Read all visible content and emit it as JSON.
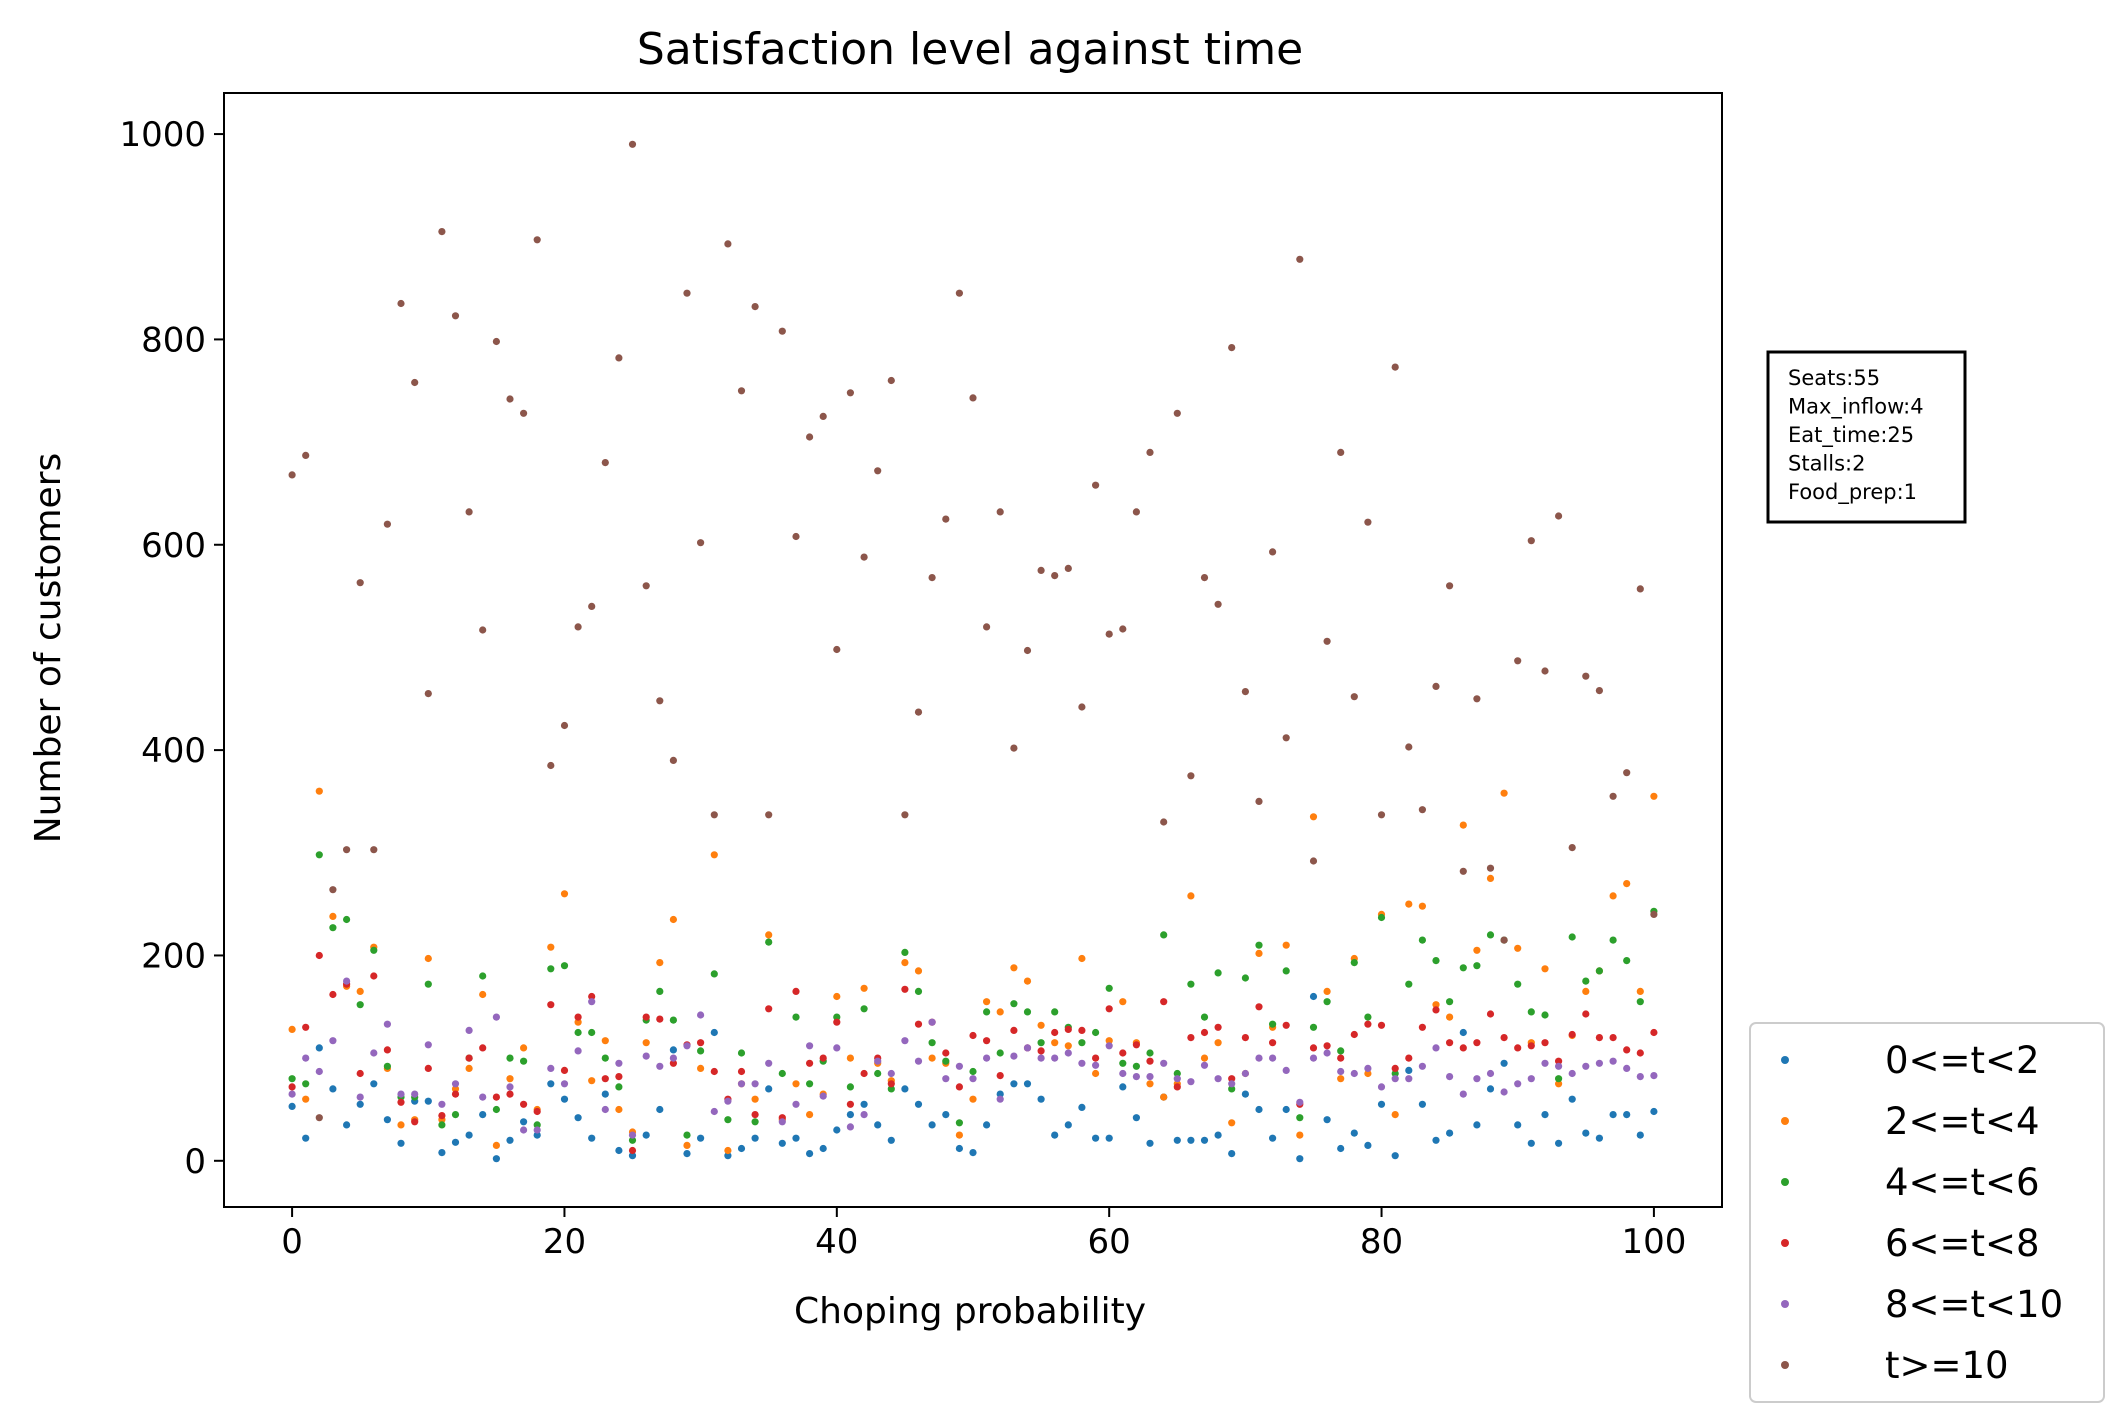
{
  "chart_data": {
    "type": "scatter",
    "title": "Satisfaction level against time",
    "xlabel": "Choping probability",
    "ylabel": "Number of customers",
    "xlim": [
      -5,
      105
    ],
    "ylim": [
      -45,
      1040
    ],
    "xticks": [
      0,
      20,
      40,
      60,
      80,
      100
    ],
    "yticks": [
      0,
      200,
      400,
      600,
      800,
      1000
    ],
    "grid": false,
    "legend_position": "outside lower right",
    "x": [
      0,
      1,
      2,
      3,
      4,
      5,
      6,
      7,
      8,
      9,
      10,
      11,
      12,
      13,
      14,
      15,
      16,
      17,
      18,
      19,
      20,
      21,
      22,
      23,
      24,
      25,
      26,
      27,
      28,
      29,
      30,
      31,
      32,
      33,
      34,
      35,
      36,
      37,
      38,
      39,
      40,
      41,
      42,
      43,
      44,
      45,
      46,
      47,
      48,
      49,
      50,
      51,
      52,
      53,
      54,
      55,
      56,
      57,
      58,
      59,
      60,
      61,
      62,
      63,
      64,
      65,
      66,
      67,
      68,
      69,
      70,
      71,
      72,
      73,
      74,
      75,
      76,
      77,
      78,
      79,
      80,
      81,
      82,
      83,
      84,
      85,
      86,
      87,
      88,
      89,
      90,
      91,
      92,
      93,
      94,
      95,
      96,
      97,
      98,
      99,
      100
    ],
    "series": [
      {
        "name": "0<=t<2",
        "color": "#1f77b4",
        "values": [
          53,
          22,
          110,
          70,
          35,
          55,
          75,
          40,
          17,
          58,
          58,
          8,
          18,
          25,
          45,
          2,
          20,
          38,
          25,
          75,
          60,
          42,
          22,
          65,
          10,
          5,
          25,
          50,
          108,
          7,
          22,
          125,
          5,
          12,
          22,
          70,
          17,
          22,
          7,
          12,
          30,
          45,
          55,
          35,
          20,
          70,
          55,
          35,
          45,
          12,
          8,
          35,
          65,
          75,
          75,
          60,
          25,
          35,
          52,
          22,
          22,
          72,
          42,
          17,
          62,
          20,
          20,
          20,
          25,
          7,
          65,
          50,
          22,
          50,
          2,
          160,
          40,
          12,
          27,
          15,
          55,
          5,
          88,
          55,
          20,
          27,
          125,
          35,
          70,
          95,
          35,
          17,
          45,
          17,
          60,
          27,
          22,
          45,
          45,
          25,
          48
        ]
      },
      {
        "name": "2<=t<4",
        "color": "#ff7f0e",
        "values": [
          128,
          60,
          360,
          238,
          170,
          165,
          208,
          90,
          35,
          40,
          197,
          40,
          70,
          90,
          162,
          15,
          80,
          110,
          50,
          208,
          260,
          135,
          78,
          117,
          50,
          28,
          115,
          193,
          235,
          15,
          90,
          298,
          10,
          75,
          60,
          220,
          40,
          75,
          45,
          65,
          160,
          100,
          168,
          95,
          78,
          193,
          185,
          100,
          95,
          25,
          60,
          155,
          145,
          188,
          175,
          132,
          115,
          112,
          197,
          85,
          117,
          155,
          115,
          75,
          62,
          75,
          258,
          100,
          115,
          37,
          85,
          202,
          130,
          210,
          25,
          335,
          165,
          80,
          197,
          85,
          240,
          45,
          250,
          248,
          152,
          140,
          327,
          205,
          275,
          358,
          207,
          115,
          187,
          75,
          122,
          165,
          185,
          258,
          270,
          165,
          355
        ]
      },
      {
        "name": "4<=t<6",
        "color": "#2ca02c",
        "values": [
          80,
          75,
          298,
          227,
          235,
          152,
          205,
          92,
          62,
          62,
          172,
          35,
          45,
          100,
          180,
          50,
          100,
          97,
          35,
          187,
          190,
          125,
          125,
          100,
          72,
          20,
          137,
          165,
          137,
          25,
          107,
          182,
          40,
          105,
          38,
          213,
          85,
          140,
          75,
          97,
          140,
          72,
          148,
          85,
          70,
          203,
          165,
          115,
          97,
          37,
          87,
          145,
          105,
          153,
          145,
          115,
          145,
          130,
          115,
          125,
          168,
          95,
          92,
          105,
          220,
          85,
          172,
          140,
          183,
          70,
          178,
          210,
          133,
          185,
          42,
          130,
          155,
          107,
          193,
          140,
          237,
          85,
          172,
          215,
          195,
          155,
          188,
          190,
          220,
          215,
          172,
          145,
          142,
          80,
          218,
          175,
          185,
          215,
          195,
          155,
          243
        ]
      },
      {
        "name": "6<=t<8",
        "color": "#d62728",
        "values": [
          72,
          130,
          200,
          162,
          172,
          85,
          180,
          108,
          57,
          38,
          90,
          44,
          65,
          100,
          110,
          62,
          65,
          55,
          48,
          152,
          88,
          140,
          160,
          80,
          82,
          10,
          140,
          138,
          95,
          113,
          115,
          87,
          60,
          87,
          45,
          148,
          42,
          165,
          95,
          100,
          135,
          55,
          85,
          100,
          75,
          167,
          133,
          135,
          105,
          72,
          122,
          117,
          83,
          127,
          110,
          107,
          125,
          128,
          127,
          100,
          148,
          105,
          113,
          97,
          155,
          72,
          120,
          125,
          130,
          80,
          120,
          150,
          115,
          132,
          55,
          110,
          112,
          100,
          123,
          133,
          132,
          90,
          100,
          130,
          147,
          115,
          110,
          115,
          143,
          120,
          110,
          112,
          115,
          97,
          123,
          143,
          120,
          120,
          108,
          105,
          125
        ]
      },
      {
        "name": "8<=t<10",
        "color": "#9467bd",
        "values": [
          65,
          100,
          87,
          117,
          175,
          62,
          105,
          133,
          65,
          65,
          113,
          55,
          75,
          127,
          62,
          140,
          72,
          30,
          30,
          90,
          75,
          107,
          155,
          50,
          95,
          25,
          102,
          92,
          100,
          112,
          142,
          48,
          58,
          75,
          75,
          95,
          38,
          55,
          112,
          63,
          110,
          33,
          45,
          97,
          85,
          117,
          97,
          135,
          80,
          92,
          80,
          100,
          60,
          102,
          110,
          100,
          100,
          105,
          95,
          93,
          112,
          85,
          82,
          82,
          95,
          80,
          77,
          93,
          80,
          75,
          85,
          100,
          100,
          88,
          57,
          100,
          105,
          87,
          85,
          90,
          72,
          80,
          80,
          92,
          110,
          82,
          65,
          80,
          85,
          67,
          75,
          80,
          95,
          92,
          85,
          92,
          95,
          97,
          90,
          82,
          83
        ]
      },
      {
        "name": "t>=10",
        "color": "#8c564b",
        "values": [
          668,
          687,
          42,
          264,
          303,
          563,
          303,
          620,
          835,
          758,
          455,
          905,
          823,
          632,
          517,
          798,
          742,
          728,
          897,
          385,
          424,
          520,
          540,
          680,
          782,
          990,
          560,
          448,
          390,
          845,
          602,
          337,
          893,
          750,
          832,
          337,
          808,
          608,
          705,
          725,
          498,
          748,
          588,
          672,
          760,
          337,
          437,
          568,
          625,
          845,
          743,
          520,
          632,
          402,
          497,
          575,
          570,
          577,
          442,
          658,
          513,
          518,
          632,
          690,
          330,
          728,
          375,
          568,
          542,
          792,
          457,
          350,
          593,
          412,
          878,
          292,
          506,
          690,
          452,
          622,
          337,
          773,
          403,
          342,
          462,
          560,
          282,
          450,
          285,
          215,
          487,
          604,
          477,
          628,
          305,
          472,
          458,
          355,
          378,
          557,
          240
        ]
      }
    ],
    "annotation": {
      "lines": [
        "Seats:55",
        "Max_inflow:4",
        "Eat_time:25",
        "Stalls:2",
        "Food_prep:1"
      ]
    }
  }
}
